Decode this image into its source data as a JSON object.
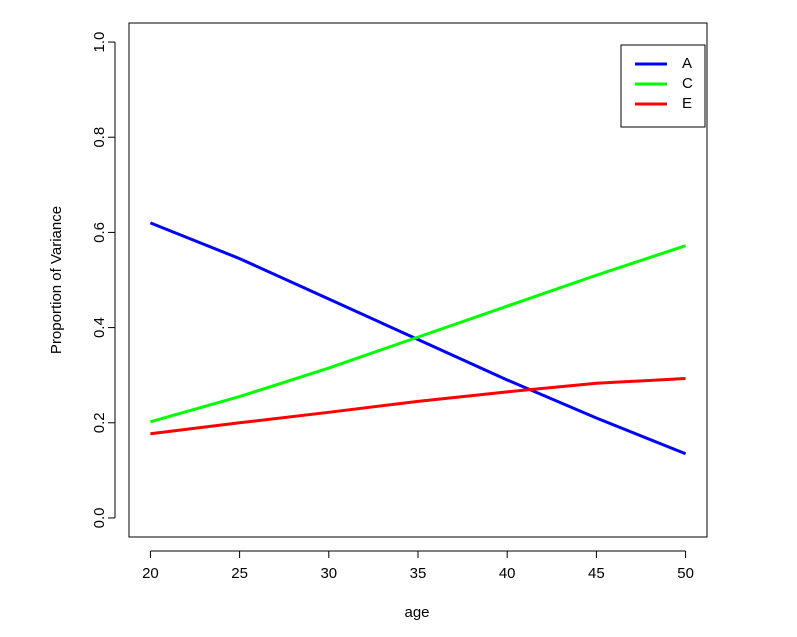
{
  "chart_data": {
    "type": "line",
    "xlabel": "age",
    "ylabel": "Proportion of Variance",
    "x": [
      20,
      25,
      30,
      35,
      40,
      45,
      50
    ],
    "series": [
      {
        "name": "A",
        "color": "#0000ff",
        "values": [
          0.62,
          0.545,
          0.46,
          0.375,
          0.29,
          0.21,
          0.135
        ]
      },
      {
        "name": "C",
        "color": "#00ff00",
        "values": [
          0.202,
          0.255,
          0.315,
          0.38,
          0.445,
          0.51,
          0.572
        ]
      },
      {
        "name": "E",
        "color": "#ff0000",
        "values": [
          0.177,
          0.2,
          0.222,
          0.245,
          0.265,
          0.283,
          0.293
        ]
      }
    ],
    "xlim": [
      18.8,
      51.2
    ],
    "xticks": [
      20,
      25,
      30,
      35,
      40,
      45,
      50
    ],
    "ylim": [
      -0.04,
      1.04
    ],
    "yticks": [
      {
        "value": 0,
        "label": "0.0"
      },
      0.2,
      0.4,
      0.6,
      0.8,
      {
        "value": 1,
        "label": "1.0"
      }
    ],
    "grid": false,
    "legend": "topright"
  }
}
